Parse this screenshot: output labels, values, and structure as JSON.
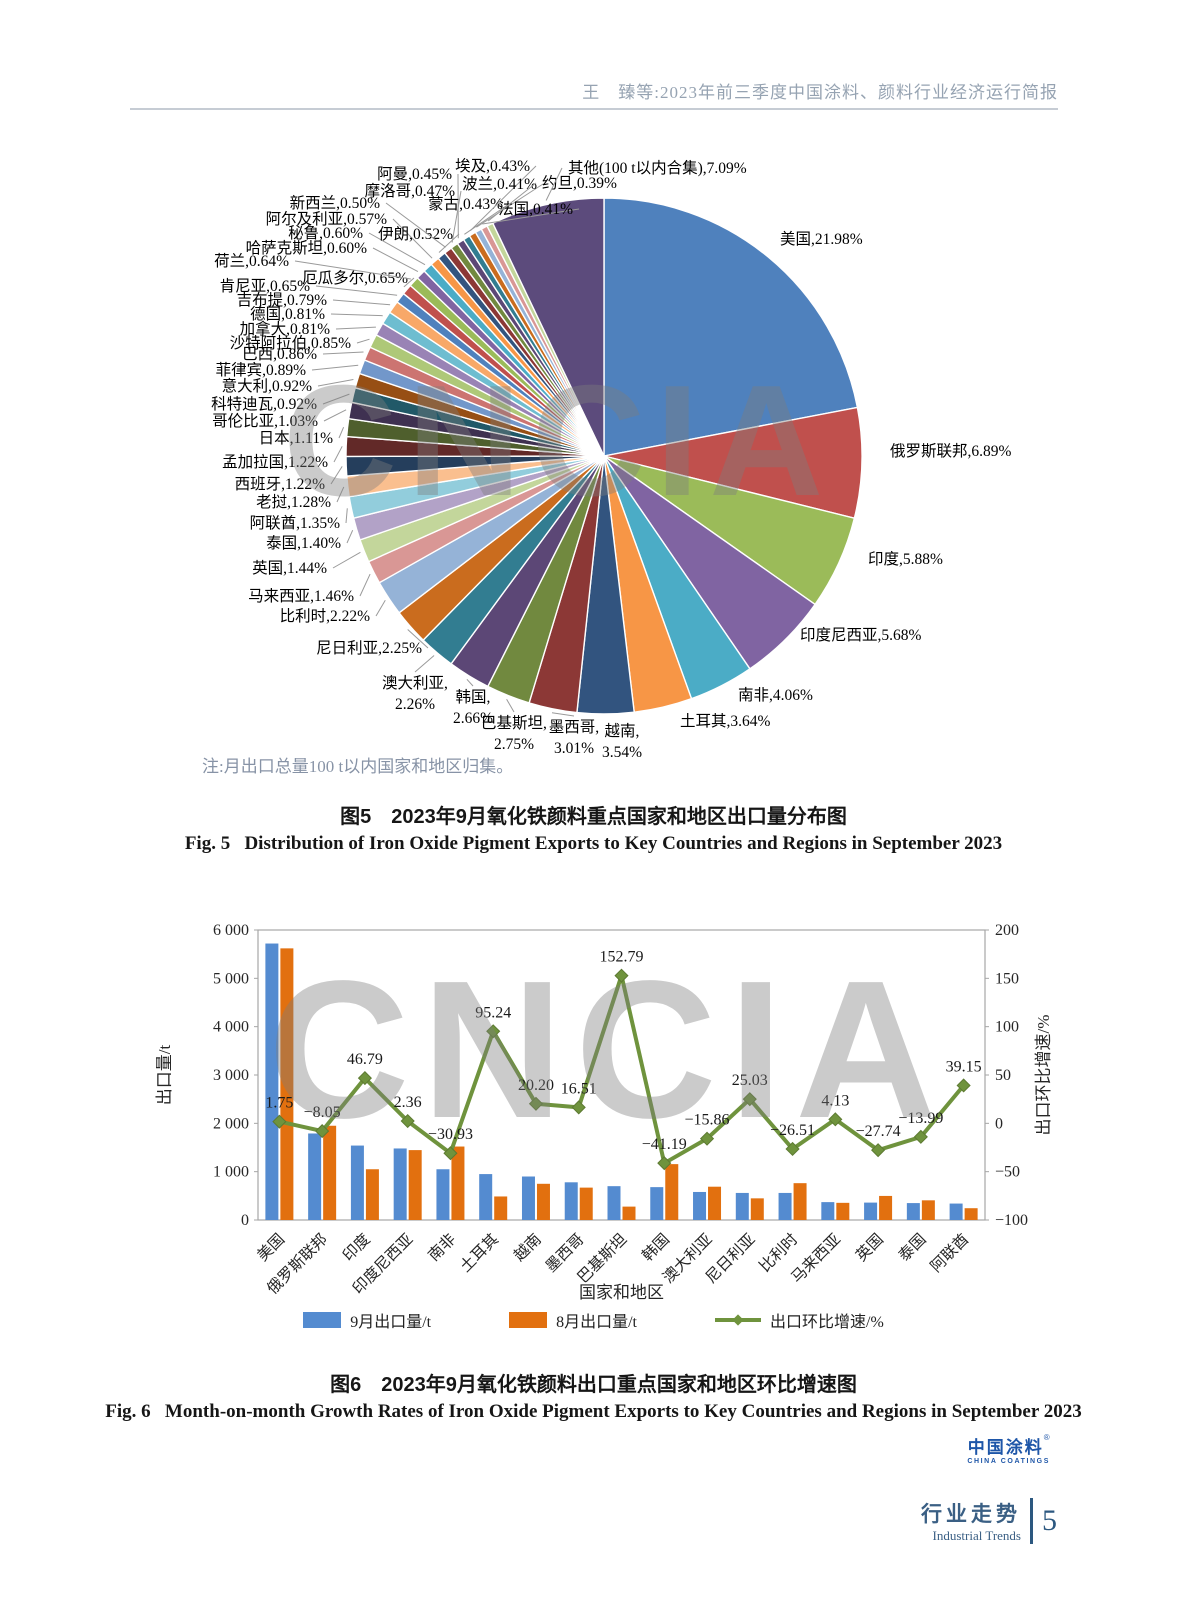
{
  "page": {
    "header_title": "王　臻等:2023年前三季度中国涂料、颜料行业经济运行简报",
    "watermark": "CNCIA",
    "page_number": "5"
  },
  "fig5": {
    "note": "注:月出口总量100 t以内国家和地区归集。",
    "caption_cn": "图5　2023年9月氧化铁颜料重点国家和地区出口量分布图",
    "caption_en": "Fig. 5   Distribution of Iron Oxide Pigment Exports to Key Countries and Regions in September 2023",
    "chart_data": {
      "type": "pie",
      "unit": "%",
      "start_angle_deg": 0,
      "direction": "clockwise",
      "items": [
        {
          "label": "美国",
          "value": 21.98,
          "color": "#4F81BD"
        },
        {
          "label": "俄罗斯联邦",
          "value": 6.89,
          "color": "#C0504D"
        },
        {
          "label": "印度",
          "value": 5.88,
          "color": "#9BBB59"
        },
        {
          "label": "印度尼西亚",
          "value": 5.68,
          "color": "#8064A2"
        },
        {
          "label": "南非",
          "value": 4.06,
          "color": "#4BACC6"
        },
        {
          "label": "土耳其",
          "value": 3.64,
          "color": "#F79646"
        },
        {
          "label": "越南",
          "value": 3.54,
          "color": "#32547F"
        },
        {
          "label": "墨西哥",
          "value": 3.01,
          "color": "#8C3836"
        },
        {
          "label": "巴基斯坦",
          "value": 2.75,
          "color": "#71893F"
        },
        {
          "label": "韩国",
          "value": 2.66,
          "color": "#5C4776"
        },
        {
          "label": "澳大利亚",
          "value": 2.26,
          "color": "#327D91"
        },
        {
          "label": "尼日利亚",
          "value": 2.25,
          "color": "#CA6C1E"
        },
        {
          "label": "比利时",
          "value": 2.22,
          "color": "#95B3D7"
        },
        {
          "label": "马来西亚",
          "value": 1.46,
          "color": "#D99795"
        },
        {
          "label": "英国",
          "value": 1.44,
          "color": "#C3D69B"
        },
        {
          "label": "泰国",
          "value": 1.4,
          "color": "#B2A2C7"
        },
        {
          "label": "阿联酋",
          "value": 1.35,
          "color": "#92CDDC"
        },
        {
          "label": "老挝",
          "value": 1.28,
          "color": "#FABF8F"
        },
        {
          "label": "西班牙",
          "value": 1.22,
          "color": "#253E5C"
        },
        {
          "label": "孟加拉国",
          "value": 1.22,
          "color": "#622928"
        },
        {
          "label": "日本",
          "value": 1.11,
          "color": "#4F5F2D"
        },
        {
          "label": "哥伦比亚",
          "value": 1.03,
          "color": "#3F3151"
        },
        {
          "label": "科特迪瓦",
          "value": 0.92,
          "color": "#215968"
        },
        {
          "label": "意大利",
          "value": 0.92,
          "color": "#974F14"
        },
        {
          "label": "菲律宾",
          "value": 0.89,
          "color": "#7297CA"
        },
        {
          "label": "巴西",
          "value": 0.86,
          "color": "#CC7471"
        },
        {
          "label": "沙特阿拉伯",
          "value": 0.85,
          "color": "#AEC878"
        },
        {
          "label": "加拿大",
          "value": 0.81,
          "color": "#9983B5"
        },
        {
          "label": "德国",
          "value": 0.81,
          "color": "#6EBDD0"
        },
        {
          "label": "吉布提",
          "value": 0.79,
          "color": "#F8A868"
        },
        {
          "label": "肯尼亚",
          "value": 0.65,
          "color": "#4F81BD"
        },
        {
          "label": "厄瓜多尔",
          "value": 0.65,
          "color": "#C0504D"
        },
        {
          "label": "荷兰",
          "value": 0.64,
          "color": "#9BBB59"
        },
        {
          "label": "哈萨克斯坦",
          "value": 0.6,
          "color": "#8064A2"
        },
        {
          "label": "秘鲁",
          "value": 0.6,
          "color": "#4BACC6"
        },
        {
          "label": "阿尔及利亚",
          "value": 0.57,
          "color": "#F79646"
        },
        {
          "label": "伊朗",
          "value": 0.52,
          "color": "#32547F"
        },
        {
          "label": "新西兰",
          "value": 0.5,
          "color": "#8C3836"
        },
        {
          "label": "摩洛哥",
          "value": 0.47,
          "color": "#71893F"
        },
        {
          "label": "阿曼",
          "value": 0.45,
          "color": "#5C4776"
        },
        {
          "label": "蒙古",
          "value": 0.43,
          "color": "#327D91"
        },
        {
          "label": "埃及",
          "value": 0.43,
          "color": "#CA6C1E"
        },
        {
          "label": "波兰",
          "value": 0.41,
          "color": "#95B3D7"
        },
        {
          "label": "法国",
          "value": 0.41,
          "color": "#D99795"
        },
        {
          "label": "约旦",
          "value": 0.39,
          "color": "#C3D69B"
        },
        {
          "label": "其他(100 t以内合集)",
          "value": 7.09,
          "color": "#5C4B7C"
        }
      ]
    }
  },
  "fig6": {
    "caption_cn": "图6　2023年9月氧化铁颜料出口重点国家和地区环比增速图",
    "caption_en": "Fig. 6   Month-on-month Growth Rates of Iron Oxide Pigment Exports to Key Countries and Regions in September 2023",
    "chart_data": {
      "type": "bar+line",
      "categories": [
        "美国",
        "俄罗斯联邦",
        "印度",
        "印度尼西亚",
        "南非",
        "土耳其",
        "越南",
        "墨西哥",
        "巴基斯坦",
        "韩国",
        "澳大利亚",
        "尼日利亚",
        "比利时",
        "马来西亚",
        "英国",
        "泰国",
        "阿联酋"
      ],
      "x_label": "国家和地区",
      "y_left": {
        "label": "出口量/t",
        "min": 0,
        "max": 6000,
        "step": 1000
      },
      "y_right": {
        "label": "出口环比增速/%",
        "min": -100,
        "max": 200,
        "step": 50
      },
      "series": [
        {
          "name": "9月出口量/t",
          "type": "bar",
          "axis": "left",
          "color": "#548BD0",
          "values": [
            5720,
            1790,
            1540,
            1480,
            1050,
            950,
            900,
            780,
            700,
            680,
            580,
            560,
            560,
            370,
            360,
            350,
            340
          ]
        },
        {
          "name": "8月出口量/t",
          "type": "bar",
          "axis": "left",
          "color": "#E2700F",
          "values": [
            5620,
            1950,
            1050,
            1446,
            1520,
            487,
            749,
            670,
            277,
            1156,
            689,
            448,
            762,
            355,
            498,
            407,
            244
          ]
        },
        {
          "name": "出口环比增速/%",
          "type": "line",
          "axis": "right",
          "color": "#6F933D",
          "values": [
            1.75,
            -8.05,
            46.79,
            2.36,
            -30.93,
            95.24,
            20.2,
            16.51,
            152.79,
            -41.19,
            -15.86,
            25.03,
            -26.51,
            4.13,
            -27.74,
            -13.99,
            39.15
          ]
        }
      ]
    }
  },
  "footer": {
    "logo_cn": "中国涂料",
    "logo_mark": "®",
    "logo_en": "CHINA COATINGS",
    "section_cn": "行业走势",
    "section_en": "Industrial Trends",
    "page_number": "5"
  }
}
